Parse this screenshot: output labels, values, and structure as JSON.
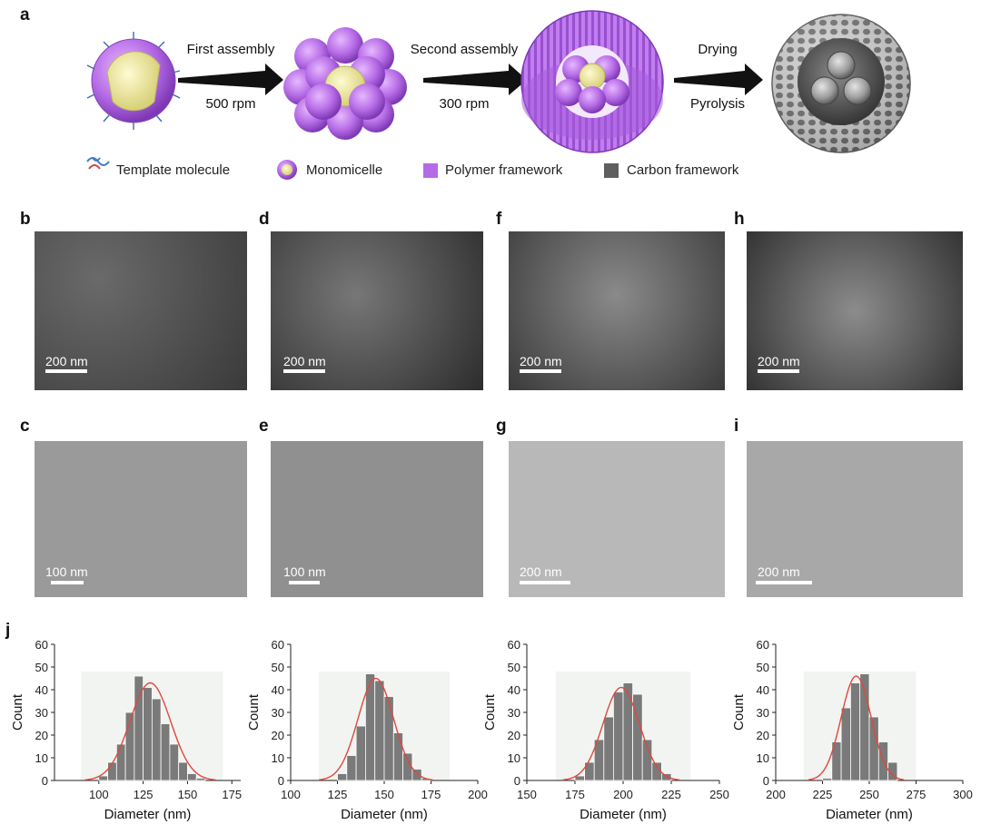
{
  "panel_labels": {
    "a": "a",
    "b": "b",
    "c": "c",
    "d": "d",
    "e": "e",
    "f": "f",
    "g": "g",
    "h": "h",
    "i": "i",
    "j": "j"
  },
  "schematic": {
    "step1_top": "First assembly",
    "step1_bottom": "500 rpm",
    "step2_top": "Second assembly",
    "step2_bottom": "300 rpm",
    "step3_top": "Drying",
    "step3_bottom": "Pyrolysis"
  },
  "legend": {
    "template": "Template molecule",
    "monomicelle": "Monomicelle",
    "polymer": "Polymer framework",
    "carbon": "Carbon framework"
  },
  "colors": {
    "polymer": "#b66be6",
    "carbon": "#5f5f5f",
    "core": "#f1ee9a",
    "fit": "#e0483c",
    "bar": "#7a7a7a"
  },
  "sem_scale": {
    "b": "200 nm",
    "d": "200 nm",
    "f": "200 nm",
    "h": "200 nm"
  },
  "tem_scale": {
    "c": "100 nm",
    "e": "100 nm",
    "g": "200 nm",
    "i": "200 nm"
  },
  "chart_data": [
    {
      "type": "bar",
      "title": "",
      "xlabel": "Diameter (nm)",
      "ylabel": "Count",
      "xlim": [
        75,
        180
      ],
      "ylim": [
        0,
        60
      ],
      "xticks": [
        100,
        125,
        150,
        175
      ],
      "yticks": [
        0,
        10,
        20,
        30,
        40,
        50,
        60
      ],
      "bin_width": 5,
      "bin_centers": [
        102.5,
        107.5,
        112.5,
        117.5,
        122.5,
        127.5,
        132.5,
        137.5,
        142.5,
        147.5,
        152.5,
        157.5
      ],
      "values": [
        2,
        8,
        16,
        30,
        46,
        41,
        36,
        25,
        16,
        8,
        3,
        1
      ],
      "fit": {
        "mean": 129,
        "sd": 11.5,
        "peak": 43
      }
    },
    {
      "type": "bar",
      "title": "",
      "xlabel": "Diameter (nm)",
      "ylabel": "Count",
      "xlim": [
        100,
        200
      ],
      "ylim": [
        0,
        60
      ],
      "xticks": [
        100,
        125,
        150,
        175,
        200
      ],
      "yticks": [
        0,
        10,
        20,
        30,
        40,
        50,
        60
      ],
      "bin_width": 5,
      "bin_centers": [
        127.5,
        132.5,
        137.5,
        142.5,
        147.5,
        152.5,
        157.5,
        162.5,
        167.5,
        172.5
      ],
      "values": [
        3,
        11,
        24,
        47,
        44,
        37,
        21,
        12,
        5,
        1
      ],
      "fit": {
        "mean": 145.5,
        "sd": 9.5,
        "peak": 45
      }
    },
    {
      "type": "bar",
      "title": "",
      "xlabel": "Diameter (nm)",
      "ylabel": "Count",
      "xlim": [
        150,
        250
      ],
      "ylim": [
        0,
        60
      ],
      "xticks": [
        150,
        175,
        200,
        225,
        250
      ],
      "yticks": [
        0,
        10,
        20,
        30,
        40,
        50,
        60
      ],
      "bin_width": 5,
      "bin_centers": [
        177.5,
        182.5,
        187.5,
        192.5,
        197.5,
        202.5,
        207.5,
        212.5,
        217.5,
        222.5
      ],
      "values": [
        2,
        8,
        18,
        28,
        39,
        43,
        38,
        18,
        8,
        3
      ],
      "fit": {
        "mean": 199,
        "sd": 9.5,
        "peak": 41
      }
    },
    {
      "type": "bar",
      "title": "",
      "xlabel": "Diameter (nm)",
      "ylabel": "Count",
      "xlim": [
        200,
        300
      ],
      "ylim": [
        0,
        60
      ],
      "xticks": [
        200,
        225,
        250,
        275,
        300
      ],
      "yticks": [
        0,
        10,
        20,
        30,
        40,
        50,
        60
      ],
      "bin_width": 5,
      "bin_centers": [
        227.5,
        232.5,
        237.5,
        242.5,
        247.5,
        252.5,
        257.5,
        262.5
      ],
      "values": [
        1,
        17,
        32,
        43,
        47,
        28,
        17,
        8
      ],
      "fit": {
        "mean": 243,
        "sd": 8,
        "peak": 46
      }
    }
  ]
}
